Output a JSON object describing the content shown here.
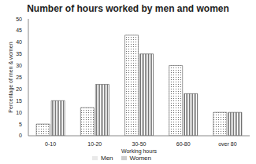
{
  "chart_data": {
    "type": "bar",
    "title": "Number of hours worked by men and women",
    "x_label": "Working hours",
    "y_label": "Percentage of men & women",
    "categories": [
      "0-10",
      "10-20",
      "30-50",
      "60-80",
      "over 80"
    ],
    "series": [
      {
        "name": "Men",
        "color": "#ffffff",
        "values": [
          5,
          12,
          43,
          30,
          10
        ]
      },
      {
        "name": "Women",
        "color": "#ffffff",
        "values": [
          15,
          22,
          35,
          18,
          10
        ]
      }
    ],
    "ylim": [
      0,
      50
    ],
    "yticks": [
      0,
      5,
      10,
      15,
      20,
      25,
      30,
      35,
      40,
      45,
      50
    ],
    "grid": false,
    "legend": "bottom"
  }
}
